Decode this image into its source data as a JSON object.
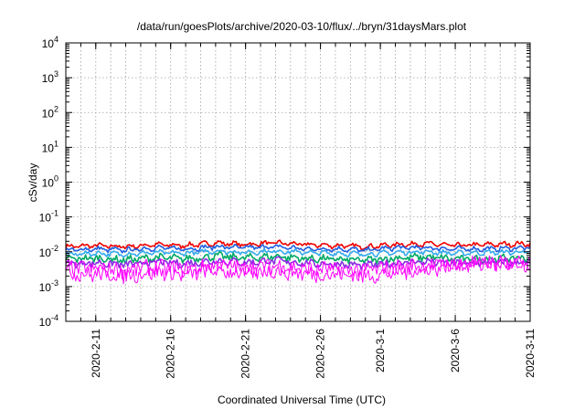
{
  "chart_data": {
    "type": "line",
    "title": "/data/run/goesPlots/archive/2020-03-10/flux/../bryn/31daysMars.plot",
    "xlabel": "Coordinated Universal Time (UTC)",
    "ylabel": "cSv/day",
    "yscale": "log",
    "ylim": [
      0.0001,
      10000
    ],
    "xlim": [
      "2020-02-09",
      "2020-03-11"
    ],
    "grid": true,
    "legend": "none",
    "y_ticks": [
      {
        "base": "10",
        "exp": "-4"
      },
      {
        "base": "10",
        "exp": "-3"
      },
      {
        "base": "10",
        "exp": "-2"
      },
      {
        "base": "10",
        "exp": "-1"
      },
      {
        "base": "10",
        "exp": "0"
      },
      {
        "base": "10",
        "exp": "1"
      },
      {
        "base": "10",
        "exp": "2"
      },
      {
        "base": "10",
        "exp": "3"
      },
      {
        "base": "10",
        "exp": "4"
      }
    ],
    "x_ticks": [
      {
        "date": "2020-02-11",
        "label": "2020-2-11"
      },
      {
        "date": "2020-02-16",
        "label": "2020-2-16"
      },
      {
        "date": "2020-02-21",
        "label": "2020-2-21"
      },
      {
        "date": "2020-02-26",
        "label": "2020-2-26"
      },
      {
        "date": "2020-03-01",
        "label": "2020-3-1"
      },
      {
        "date": "2020-03-06",
        "label": "2020-3-6"
      },
      {
        "date": "2020-03-11",
        "label": "2020-3-11"
      }
    ],
    "series": [
      {
        "color": "#ee0000",
        "points": [
          [
            "2020-02-09",
            0.014
          ],
          [
            "2020-02-11",
            0.015
          ],
          [
            "2020-02-13",
            0.014
          ],
          [
            "2020-02-15",
            0.016
          ],
          [
            "2020-02-17",
            0.015
          ],
          [
            "2020-02-19",
            0.018
          ],
          [
            "2020-02-21",
            0.016
          ],
          [
            "2020-02-23",
            0.018
          ],
          [
            "2020-02-25",
            0.016
          ],
          [
            "2020-02-27",
            0.015
          ],
          [
            "2020-02-29",
            0.014
          ],
          [
            "2020-03-02",
            0.016
          ],
          [
            "2020-03-04",
            0.017
          ],
          [
            "2020-03-06",
            0.015
          ],
          [
            "2020-03-08",
            0.016
          ],
          [
            "2020-03-11",
            0.017
          ]
        ]
      },
      {
        "color": "#1f5fe0",
        "points": [
          [
            "2020-02-09",
            0.011
          ],
          [
            "2020-02-11",
            0.012
          ],
          [
            "2020-02-13",
            0.011
          ],
          [
            "2020-02-15",
            0.013
          ],
          [
            "2020-02-17",
            0.012
          ],
          [
            "2020-02-19",
            0.014
          ],
          [
            "2020-02-21",
            0.013
          ],
          [
            "2020-02-23",
            0.014
          ],
          [
            "2020-02-25",
            0.012
          ],
          [
            "2020-02-27",
            0.012
          ],
          [
            "2020-02-29",
            0.011
          ],
          [
            "2020-03-02",
            0.013
          ],
          [
            "2020-03-04",
            0.013
          ],
          [
            "2020-03-06",
            0.012
          ],
          [
            "2020-03-08",
            0.012
          ],
          [
            "2020-03-11",
            0.013
          ]
        ]
      },
      {
        "color": "#33aaee",
        "points": [
          [
            "2020-02-09",
            0.0085
          ],
          [
            "2020-02-11",
            0.009
          ],
          [
            "2020-02-13",
            0.0085
          ],
          [
            "2020-02-15",
            0.0095
          ],
          [
            "2020-02-17",
            0.009
          ],
          [
            "2020-02-19",
            0.0105
          ],
          [
            "2020-02-21",
            0.0095
          ],
          [
            "2020-02-23",
            0.0105
          ],
          [
            "2020-02-25",
            0.0095
          ],
          [
            "2020-02-27",
            0.009
          ],
          [
            "2020-02-29",
            0.0085
          ],
          [
            "2020-03-02",
            0.0095
          ],
          [
            "2020-03-04",
            0.01
          ],
          [
            "2020-03-06",
            0.009
          ],
          [
            "2020-03-08",
            0.0095
          ],
          [
            "2020-03-11",
            0.0098
          ]
        ]
      },
      {
        "color": "#00aa66",
        "points": [
          [
            "2020-02-09",
            0.0062
          ],
          [
            "2020-02-11",
            0.0065
          ],
          [
            "2020-02-13",
            0.0058
          ],
          [
            "2020-02-15",
            0.0068
          ],
          [
            "2020-02-17",
            0.0062
          ],
          [
            "2020-02-19",
            0.0075
          ],
          [
            "2020-02-21",
            0.0066
          ],
          [
            "2020-02-23",
            0.0074
          ],
          [
            "2020-02-25",
            0.0064
          ],
          [
            "2020-02-27",
            0.006
          ],
          [
            "2020-02-29",
            0.0056
          ],
          [
            "2020-03-02",
            0.0066
          ],
          [
            "2020-03-04",
            0.007
          ],
          [
            "2020-03-06",
            0.0062
          ],
          [
            "2020-03-08",
            0.0064
          ],
          [
            "2020-03-11",
            0.0066
          ]
        ]
      },
      {
        "color": "#8a2be2",
        "points": [
          [
            "2020-02-09",
            0.0045
          ],
          [
            "2020-02-11",
            0.0048
          ],
          [
            "2020-02-13",
            0.0042
          ],
          [
            "2020-02-15",
            0.005
          ],
          [
            "2020-02-17",
            0.0045
          ],
          [
            "2020-02-19",
            0.0056
          ],
          [
            "2020-02-21",
            0.0049
          ],
          [
            "2020-02-23",
            0.0055
          ],
          [
            "2020-02-25",
            0.0047
          ],
          [
            "2020-02-27",
            0.0044
          ],
          [
            "2020-02-29",
            0.004
          ],
          [
            "2020-03-02",
            0.0048
          ],
          [
            "2020-03-04",
            0.0052
          ],
          [
            "2020-03-06",
            0.0046
          ],
          [
            "2020-03-08",
            0.0047
          ],
          [
            "2020-03-11",
            0.0049
          ]
        ]
      },
      {
        "color": "#ff00ff",
        "points": [
          [
            "2020-02-09",
            0.0035
          ],
          [
            "2020-02-11",
            0.0032
          ],
          [
            "2020-02-13",
            0.003
          ],
          [
            "2020-02-15",
            0.0036
          ],
          [
            "2020-02-17",
            0.0031
          ],
          [
            "2020-02-19",
            0.0042
          ],
          [
            "2020-02-21",
            0.0034
          ],
          [
            "2020-02-23",
            0.004
          ],
          [
            "2020-02-25",
            0.0032
          ],
          [
            "2020-02-27",
            0.0031
          ],
          [
            "2020-02-29",
            0.0029
          ],
          [
            "2020-03-02",
            0.0035
          ],
          [
            "2020-03-04",
            0.0041
          ],
          [
            "2020-03-06",
            0.0045
          ],
          [
            "2020-03-08",
            0.0046
          ],
          [
            "2020-03-11",
            0.0047
          ]
        ]
      },
      {
        "color": "#ff00ff",
        "points": [
          [
            "2020-02-09",
            0.0025
          ],
          [
            "2020-02-11",
            0.0022
          ],
          [
            "2020-02-13",
            0.0021
          ],
          [
            "2020-02-15",
            0.0026
          ],
          [
            "2020-02-17",
            0.0022
          ],
          [
            "2020-02-19",
            0.003
          ],
          [
            "2020-02-21",
            0.0024
          ],
          [
            "2020-02-23",
            0.0029
          ],
          [
            "2020-02-25",
            0.0023
          ],
          [
            "2020-02-27",
            0.0022
          ],
          [
            "2020-02-29",
            0.002
          ],
          [
            "2020-03-02",
            0.0025
          ],
          [
            "2020-03-04",
            0.003
          ],
          [
            "2020-03-06",
            0.0042
          ],
          [
            "2020-03-08",
            0.0043
          ],
          [
            "2020-03-11",
            0.0044
          ]
        ]
      }
    ]
  }
}
